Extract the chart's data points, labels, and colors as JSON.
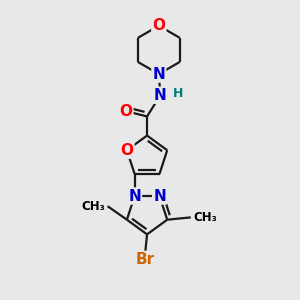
{
  "bg_color": "#e8e8e8",
  "bond_color": "#1a1a1a",
  "bond_width": 1.6,
  "atom_colors": {
    "O": "#ff0000",
    "N": "#0000cc",
    "Br": "#cc6600",
    "H": "#008080",
    "C": "#1a1a1a"
  },
  "figsize": [
    3.0,
    3.0
  ],
  "dpi": 100,
  "xlim": [
    0,
    10
  ],
  "ylim": [
    0,
    10
  ]
}
